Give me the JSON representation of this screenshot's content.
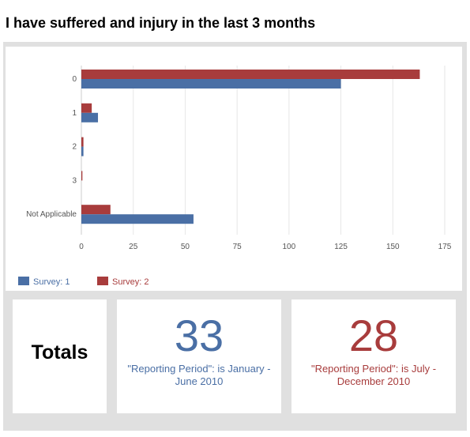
{
  "page": {
    "title": "I have suffered and injury in the last 3 months"
  },
  "chart_data": {
    "type": "bar",
    "orientation": "horizontal",
    "categories": [
      "0",
      "1",
      "2",
      "3",
      "Not Applicable"
    ],
    "series": [
      {
        "name": "Survey: 2",
        "color": "#a83c3c",
        "values": [
          163,
          5,
          1,
          0.5,
          14
        ]
      },
      {
        "name": "Survey: 1",
        "color": "#4a6fa5",
        "values": [
          125,
          8,
          1,
          0,
          54
        ]
      }
    ],
    "xlim": [
      0,
      175
    ],
    "xticks": [
      "0",
      "25",
      "50",
      "75",
      "100",
      "125",
      "150",
      "175"
    ],
    "grid": true,
    "legend": {
      "placement": "bottom-left",
      "items": [
        {
          "label": "Survey: 1",
          "color": "#4a6fa5"
        },
        {
          "label": "Survey: 2",
          "color": "#a83c3c"
        }
      ]
    }
  },
  "totals": {
    "label": "Totals",
    "periods": [
      {
        "value": "33",
        "description": "\"Reporting Period\": is January - June 2010",
        "color": "#4a6fa5"
      },
      {
        "value": "28",
        "description": "\"Reporting Period\": is July - December 2010",
        "color": "#a83c3c"
      }
    ]
  }
}
